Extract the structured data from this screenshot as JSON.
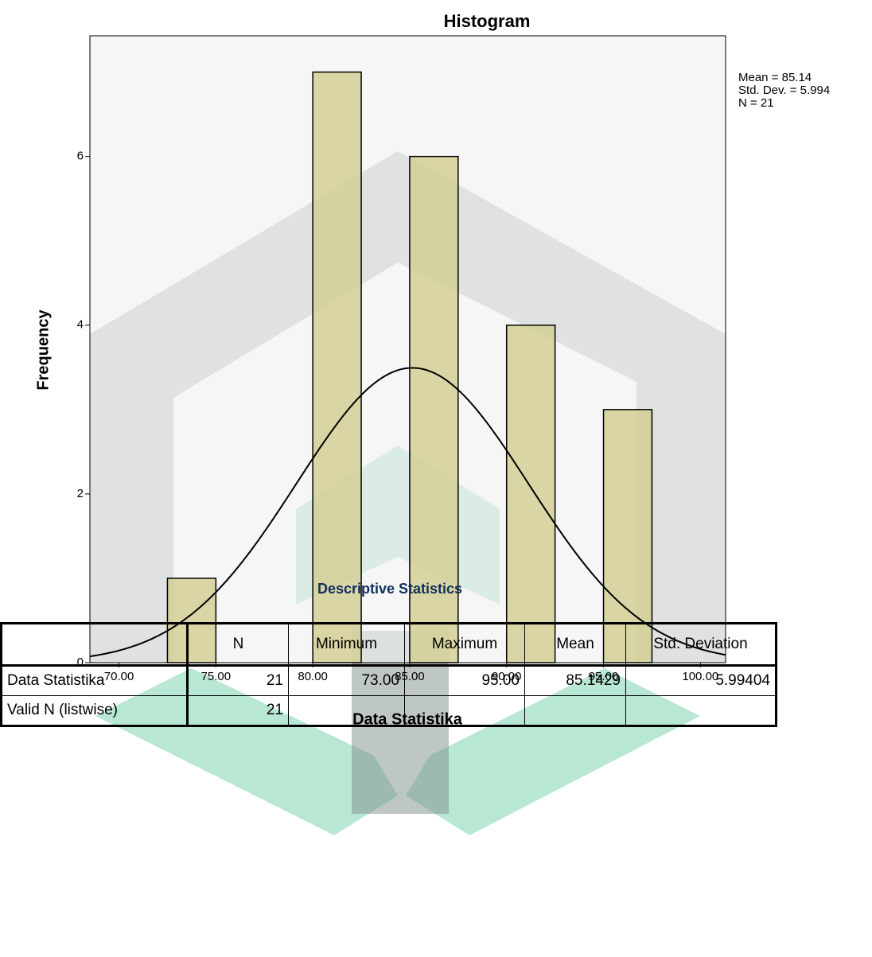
{
  "chart_data": {
    "type": "histogram",
    "title": "Histogram",
    "xlabel": "Data Statistika",
    "ylabel": "Frequency",
    "bins": [
      72.5,
      75,
      77.5,
      80,
      82.5,
      85,
      87.5,
      90,
      92.5,
      95,
      97.5
    ],
    "values": [
      1,
      0,
      0,
      7,
      0,
      6,
      0,
      4,
      0,
      3
    ],
    "color": "#d4cf96",
    "curve_color": "#000000",
    "background": "#f0f0f0",
    "xlim": [
      68.5,
      101.3
    ],
    "xticks": [
      {
        "value": 70,
        "label": "70.00"
      },
      {
        "value": 75,
        "label": "75.00"
      },
      {
        "value": 80,
        "label": "80.00"
      },
      {
        "value": 85,
        "label": "85.00"
      },
      {
        "value": 90,
        "label": "90.00"
      },
      {
        "value": 95,
        "label": "95.00"
      },
      {
        "value": 100,
        "label": "100.00"
      }
    ],
    "ylim": [
      0,
      7.43
    ],
    "yticks": [
      0,
      2,
      4,
      6
    ],
    "stats": [
      {
        "label": "Mean = 85.14",
        "value": 85.14
      },
      {
        "label": "Std. Dev. = 5.994",
        "value": 5.994
      },
      {
        "label": "N = 21",
        "value": 21
      }
    ]
  },
  "table": {
    "title": "Descriptive Statistics",
    "header": [
      "N",
      "Minimum",
      "Maximum",
      "Mean",
      "Std. Deviation"
    ],
    "rows": [
      [
        "Data Statistika",
        "21",
        "73.00",
        "95.00",
        "85.1429",
        "5.99404"
      ],
      [
        "Valid N (listwise)",
        "21"
      ]
    ]
  }
}
